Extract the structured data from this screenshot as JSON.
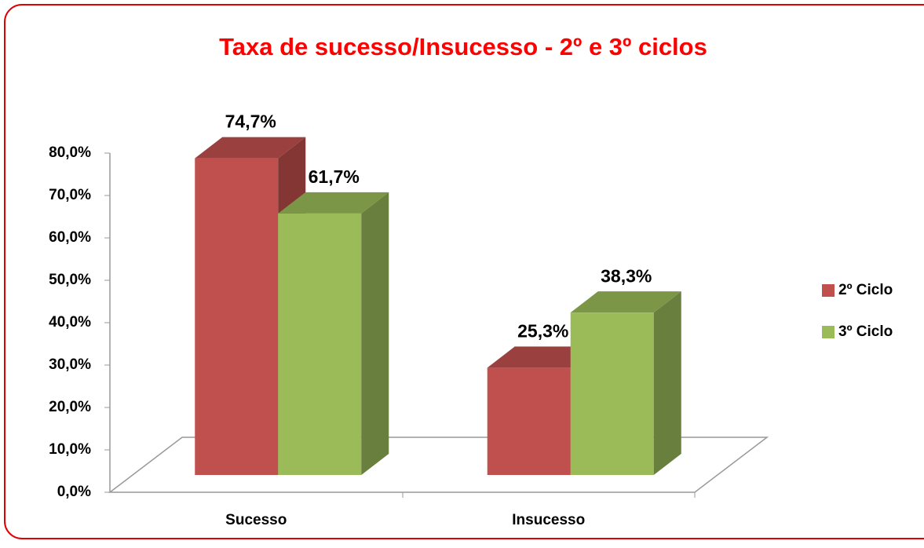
{
  "chart_data": {
    "type": "bar3d",
    "title": "Taxa de sucesso/Insucesso - 2º e 3º ciclos",
    "categories": [
      "Sucesso",
      "Insucesso"
    ],
    "series": [
      {
        "name": "2º Ciclo",
        "color": "#c0504d",
        "values": [
          74.7,
          25.3
        ],
        "value_labels": [
          "74,7%",
          "25,3%"
        ]
      },
      {
        "name": "3º Ciclo",
        "color": "#9bbb59",
        "values": [
          61.7,
          38.3
        ],
        "value_labels": [
          "61,7%",
          "38,3%"
        ]
      }
    ],
    "ylim": [
      0,
      80
    ],
    "yticks": [
      {
        "value": 0,
        "label": "0,0%"
      },
      {
        "value": 10,
        "label": "10,0%"
      },
      {
        "value": 20,
        "label": "20,0%"
      },
      {
        "value": 30,
        "label": "30,0%"
      },
      {
        "value": 40,
        "label": "40,0%"
      },
      {
        "value": 50,
        "label": "50,0%"
      },
      {
        "value": 60,
        "label": "60,0%"
      },
      {
        "value": 70,
        "label": "70,0%"
      },
      {
        "value": 80,
        "label": "80,0%"
      }
    ],
    "legend": "right"
  }
}
